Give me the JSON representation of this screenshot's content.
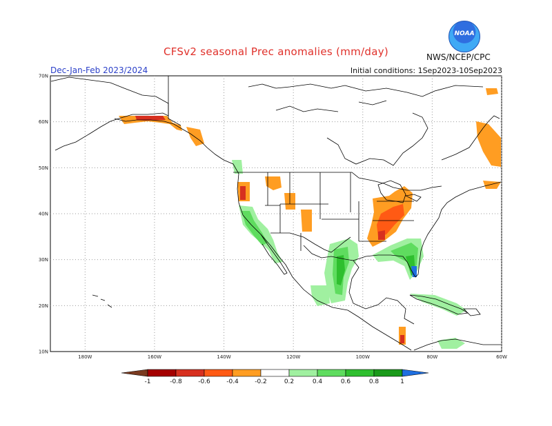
{
  "header": {
    "title": "CFSv2 seasonal Prec anomalies (mm/day)",
    "season": "Dec-Jan-Feb 2023/2024",
    "initial_conditions": "Initial conditions: 1Sep2023-10Sep2023",
    "agency": "NWS/NCEP/CPC",
    "logo_text": "NOAA"
  },
  "map": {
    "lat_range": [
      10,
      70
    ],
    "lon_range": [
      -190,
      -60
    ],
    "lat_labels": [
      "70N",
      "60N",
      "50N",
      "40N",
      "30N",
      "20N",
      "10N"
    ],
    "lon_labels": [
      "180W",
      "160W",
      "140W",
      "120W",
      "100W",
      "80W",
      "60W"
    ],
    "grid": true
  },
  "colorbar": {
    "labels": [
      "-1",
      "-0.8",
      "-0.6",
      "-0.4",
      "-0.2",
      "0.2",
      "0.4",
      "0.6",
      "0.8",
      "1"
    ],
    "colors": [
      "#7a3a1f",
      "#a50000",
      "#d7301f",
      "#ff5a14",
      "#ff9d22",
      "#ffffff",
      "#a0f0a0",
      "#5fdc5f",
      "#2fbf2f",
      "#1a9a1a",
      "#1f6fe0"
    ]
  },
  "anomaly_colors": {
    "dry_light": "#ff9d22",
    "dry_mid": "#ff5a14",
    "dry_strong": "#d7301f",
    "wet_light": "#a0f0a0",
    "wet_mid": "#5fdc5f",
    "wet_strong": "#2fbf2f",
    "wet_max": "#1f6fe0"
  }
}
